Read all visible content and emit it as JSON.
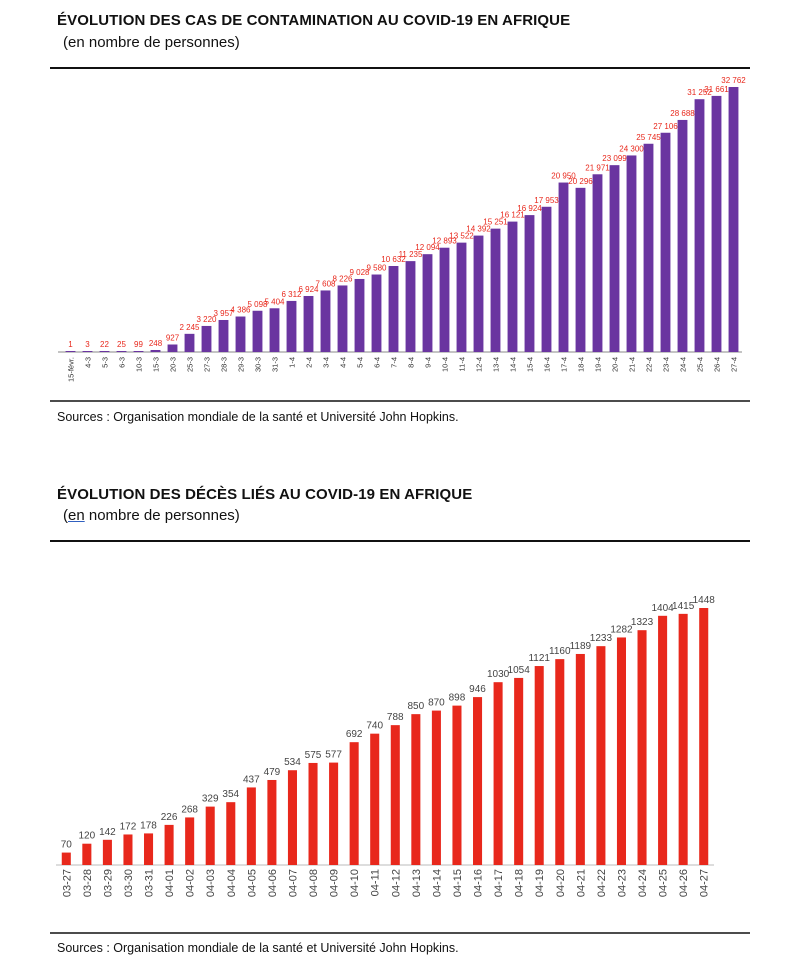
{
  "colors": {
    "chart1_bar": "#6a35a0",
    "chart1_label": "#e8281c",
    "chart2_bar": "#e8281c",
    "chart2_label": "#444444"
  },
  "chart1": {
    "title": "ÉVOLUTION DES CAS DE CONTAMINATION AU COVID-19 EN AFRIQUE",
    "subtitle": "(en nombre de personnes)",
    "source": "Sources : Organisation mondiale de la santé et Université John Hopkins."
  },
  "chart2": {
    "title": "ÉVOLUTION DES DÉCÈS LIÉS AU COVID-19 EN AFRIQUE",
    "subtitle_prefix": "(",
    "subtitle_link": "en",
    "subtitle_rest": " nombre de personnes)",
    "source": "Sources : Organisation mondiale de la santé et Université John Hopkins."
  },
  "chart_data": [
    {
      "type": "bar",
      "title": "ÉVOLUTION DES CAS DE CONTAMINATION AU COVID-19 EN AFRIQUE",
      "subtitle": "(en nombre de personnes)",
      "categories": [
        "15-févr.",
        "4-3",
        "5-3",
        "6-3",
        "10-3",
        "15-3",
        "20-3",
        "25-3",
        "27-3",
        "28-3",
        "29-3",
        "30-3",
        "31-3",
        "1-4",
        "2-4",
        "3-4",
        "4-4",
        "5-4",
        "6-4",
        "7-4",
        "8-4",
        "9-4",
        "10-4",
        "11-4",
        "12-4",
        "13-4",
        "14-4",
        "15-4",
        "16-4",
        "17-4",
        "18-4",
        "19-4",
        "20-4",
        "21-4",
        "22-4",
        "23-4",
        "24-4",
        "25-4",
        "26-4",
        "27-4"
      ],
      "labels": [
        "1",
        "3",
        "22",
        "25",
        "99",
        "248",
        "927",
        "2 245",
        "3 220",
        "3 957",
        "4 386",
        "5 098",
        "5 404",
        "6 312",
        "6 924",
        "7 608",
        "8 226",
        "9 028",
        "9 580",
        "10 632",
        "11 235",
        "12 094",
        "12 893",
        "13 522",
        "14 392",
        "15 251",
        "16 121",
        "16 924",
        "17 953",
        "20 950",
        "20 296",
        "21 971",
        "23 099",
        "24 300",
        "25 745",
        "27 106",
        "28 688",
        "31 252",
        "31 661",
        "32 762"
      ],
      "values": [
        1,
        3,
        22,
        25,
        99,
        248,
        927,
        2245,
        3220,
        3957,
        4386,
        5098,
        5404,
        6312,
        6924,
        7608,
        8226,
        9028,
        9580,
        10632,
        11235,
        12094,
        12893,
        13522,
        14392,
        15251,
        16121,
        16924,
        17953,
        20950,
        20296,
        21971,
        23099,
        24300,
        25745,
        27106,
        28688,
        31252,
        31661,
        32762
      ],
      "ylim": [
        0,
        32762
      ],
      "grid": false,
      "legend": "none"
    },
    {
      "type": "bar",
      "title": "ÉVOLUTION DES DÉCÈS LIÉS AU COVID-19 EN AFRIQUE",
      "subtitle": "(en nombre de personnes)",
      "categories": [
        "03-27",
        "03-28",
        "03-29",
        "03-30",
        "03-31",
        "04-01",
        "04-02",
        "04-03",
        "04-04",
        "04-05",
        "04-06",
        "04-07",
        "04-08",
        "04-09",
        "04-10",
        "04-11",
        "04-12",
        "04-13",
        "04-14",
        "04-15",
        "04-16",
        "04-17",
        "04-18",
        "04-19",
        "04-20",
        "04-21",
        "04-22",
        "04-23",
        "04-24",
        "04-25",
        "04-26",
        "04-27"
      ],
      "values": [
        70,
        120,
        142,
        172,
        178,
        226,
        268,
        329,
        354,
        437,
        479,
        534,
        575,
        577,
        692,
        740,
        788,
        850,
        870,
        898,
        946,
        1030,
        1054,
        1121,
        1160,
        1189,
        1233,
        1282,
        1323,
        1404,
        1415,
        1448
      ],
      "ylim": [
        0,
        1448
      ],
      "grid": false,
      "legend": "none"
    }
  ]
}
